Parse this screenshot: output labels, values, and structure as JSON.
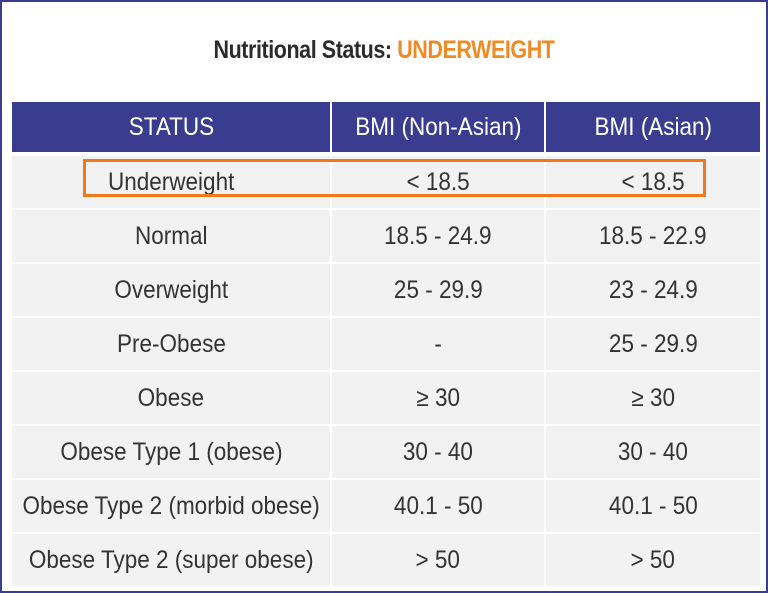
{
  "title": {
    "prefix": "Nutritional Status:",
    "highlight": "UNDERWEIGHT",
    "accent_color": "#f08a24"
  },
  "table": {
    "header_color": "#3a3d8f",
    "highlight_color": "#f07a1a",
    "columns": [
      "STATUS",
      "BMI (Non-Asian)",
      "BMI (Asian)"
    ],
    "rows": [
      [
        "Underweight",
        "< 18.5",
        "< 18.5"
      ],
      [
        "Normal",
        "18.5 - 24.9",
        "18.5 - 22.9"
      ],
      [
        "Overweight",
        "25 - 29.9",
        "23 - 24.9"
      ],
      [
        "Pre-Obese",
        "-",
        "25 - 29.9"
      ],
      [
        "Obese",
        "≥ 30",
        "≥ 30"
      ],
      [
        "Obese Type 1 (obese)",
        "30 - 40",
        "30 - 40"
      ],
      [
        "Obese Type 2 (morbid obese)",
        "40.1 - 50",
        "40.1 - 50"
      ],
      [
        "Obese Type 2 (super obese)",
        "> 50",
        "> 50"
      ]
    ],
    "highlighted_row": "Underweight"
  }
}
